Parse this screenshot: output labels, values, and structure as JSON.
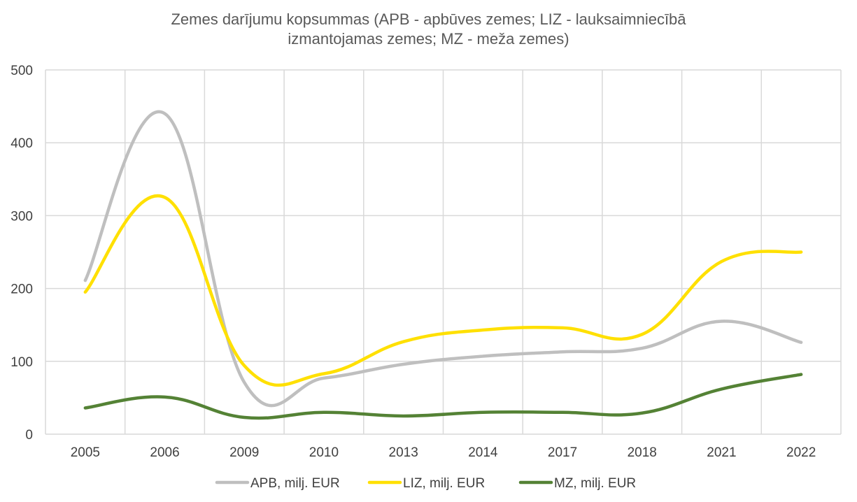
{
  "chart_data": {
    "type": "line",
    "title_line1": "Zemes darījumu kopsummas (APB - apbūves zemes; LIZ - lauksaimniecībā",
    "title_line2": "izmantojamas zemes; MZ - meža zemes)",
    "xlabel": "",
    "ylabel": "",
    "ylim": [
      0,
      500
    ],
    "yticks": [
      "0",
      "100",
      "200",
      "300",
      "400",
      "500"
    ],
    "categories": [
      "2005",
      "2006",
      "2009",
      "2010",
      "2013",
      "2014",
      "2017",
      "2018",
      "2021",
      "2022"
    ],
    "grid": true,
    "legend_position": "bottom",
    "series": [
      {
        "name": "APB, milj. EUR",
        "color": "#BFBFBF",
        "values": [
          211,
          440,
          71,
          77,
          96,
          107,
          113,
          118,
          155,
          126
        ]
      },
      {
        "name": "LIZ, milj. EUR",
        "color": "#FFE000",
        "values": [
          195,
          325,
          94,
          83,
          127,
          143,
          146,
          137,
          237,
          250
        ]
      },
      {
        "name": "MZ, milj. EUR",
        "color": "#548235",
        "values": [
          36,
          51,
          23,
          30,
          25,
          30,
          30,
          29,
          62,
          82
        ]
      }
    ]
  }
}
